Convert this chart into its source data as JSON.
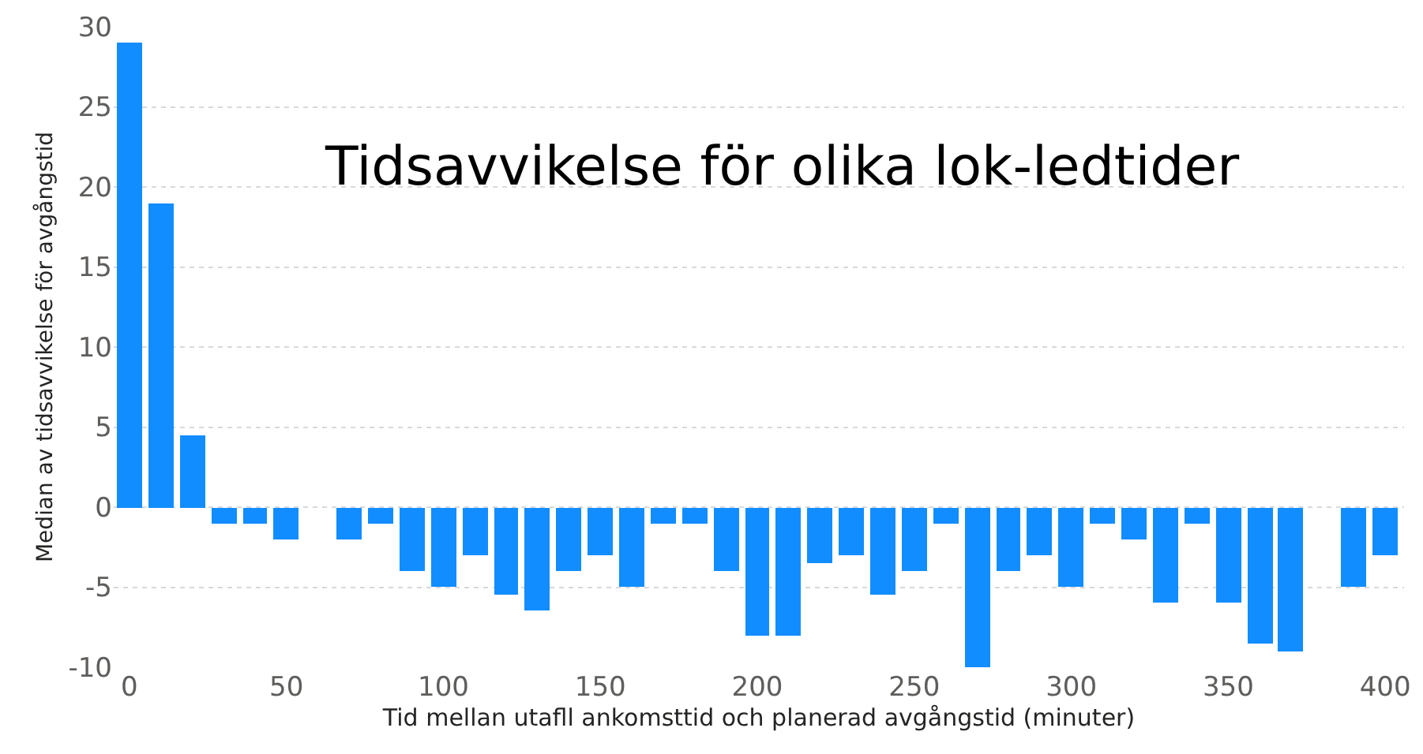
{
  "chart_data": {
    "type": "bar",
    "title": "Tidsavvikelse för olika lok-ledtider",
    "xlabel": "Tid mellan utafll ankomsttid och planerad avgångstid (minuter)",
    "ylabel": "Median av tidsavvikelse för avgångstid",
    "x": [
      0,
      10,
      20,
      30,
      40,
      50,
      60,
      70,
      80,
      90,
      100,
      110,
      120,
      130,
      140,
      150,
      160,
      170,
      180,
      190,
      200,
      210,
      220,
      230,
      240,
      250,
      260,
      270,
      280,
      290,
      300,
      310,
      320,
      330,
      340,
      350,
      360,
      370,
      380,
      390,
      400
    ],
    "values": [
      29,
      19,
      4.5,
      -1,
      -1,
      -2,
      null,
      -2,
      -1,
      -4,
      -5,
      -3,
      -5.5,
      -6.5,
      -4,
      -3,
      -5,
      -1,
      -1,
      -4,
      -8,
      -8,
      -3.5,
      -3,
      -5.5,
      -4,
      -1,
      -10,
      -4,
      -3,
      -5,
      -1,
      -2,
      -6,
      -1,
      -6,
      -8.5,
      -9,
      null,
      -5,
      -3
    ],
    "color": "#118dff",
    "xlim": [
      -5,
      406
    ],
    "xticks": [
      0,
      50,
      100,
      150,
      200,
      250,
      300,
      350,
      400
    ],
    "ylim": [
      -10,
      30
    ],
    "yticks": [
      -10,
      -5,
      0,
      5,
      10,
      15,
      20,
      25,
      30
    ],
    "grid": "y"
  }
}
